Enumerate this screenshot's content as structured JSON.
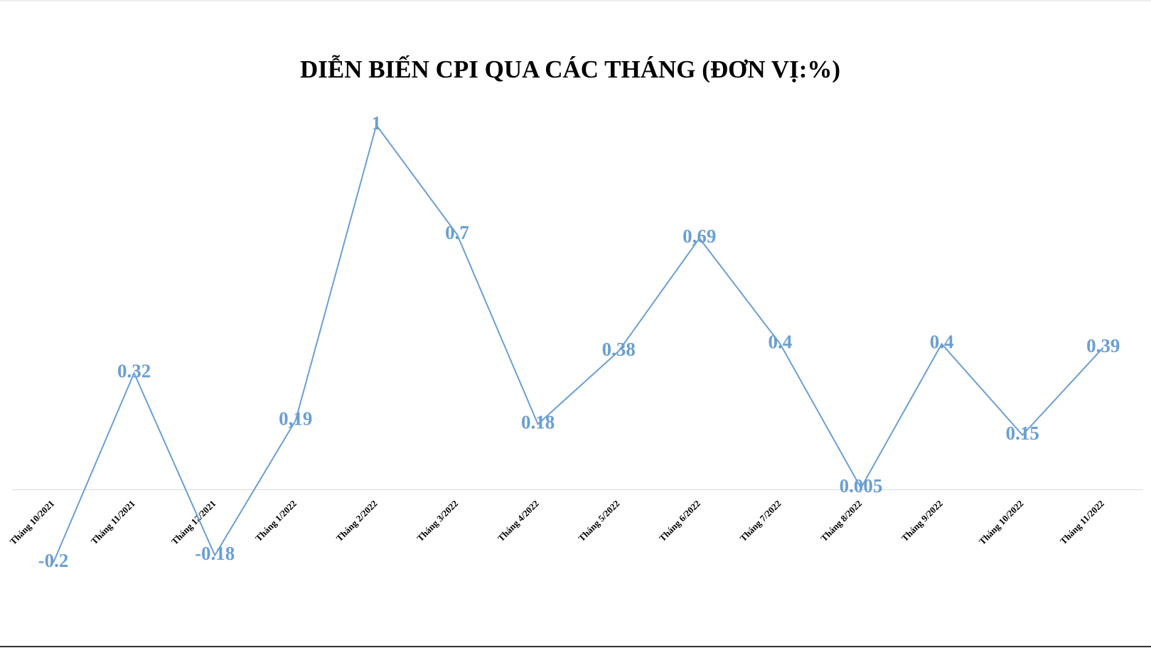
{
  "chart_data": {
    "type": "line",
    "title": "DIỄN BIẾN CPI QUA CÁC THÁNG (ĐƠN VỊ:%)",
    "categories": [
      "Tháng 10/2021",
      "Tháng 11/2021",
      "Tháng 12/2021",
      "Tháng 1/2022",
      "Tháng 2/2022",
      "Tháng 3/2022",
      "Tháng 4/2022",
      "Tháng 5/2022",
      "Tháng 6/2022",
      "Tháng 7/2022",
      "Tháng 8/2022",
      "Tháng 9/2022",
      "Tháng 10/2022",
      "Tháng 11/2022"
    ],
    "values": [
      -0.2,
      0.32,
      -0.18,
      0.19,
      1,
      0.7,
      0.18,
      0.38,
      0.69,
      0.4,
      0.005,
      0.4,
      0.15,
      0.39
    ],
    "value_labels": [
      "-0.2",
      "0.32",
      "-0.18",
      "0,19",
      "1",
      "0.7",
      "0.18",
      "0.38",
      "0,69",
      "0.4",
      "0.005",
      "0.4",
      "0.15",
      "0.39"
    ],
    "color": "#6a9fd2"
  }
}
